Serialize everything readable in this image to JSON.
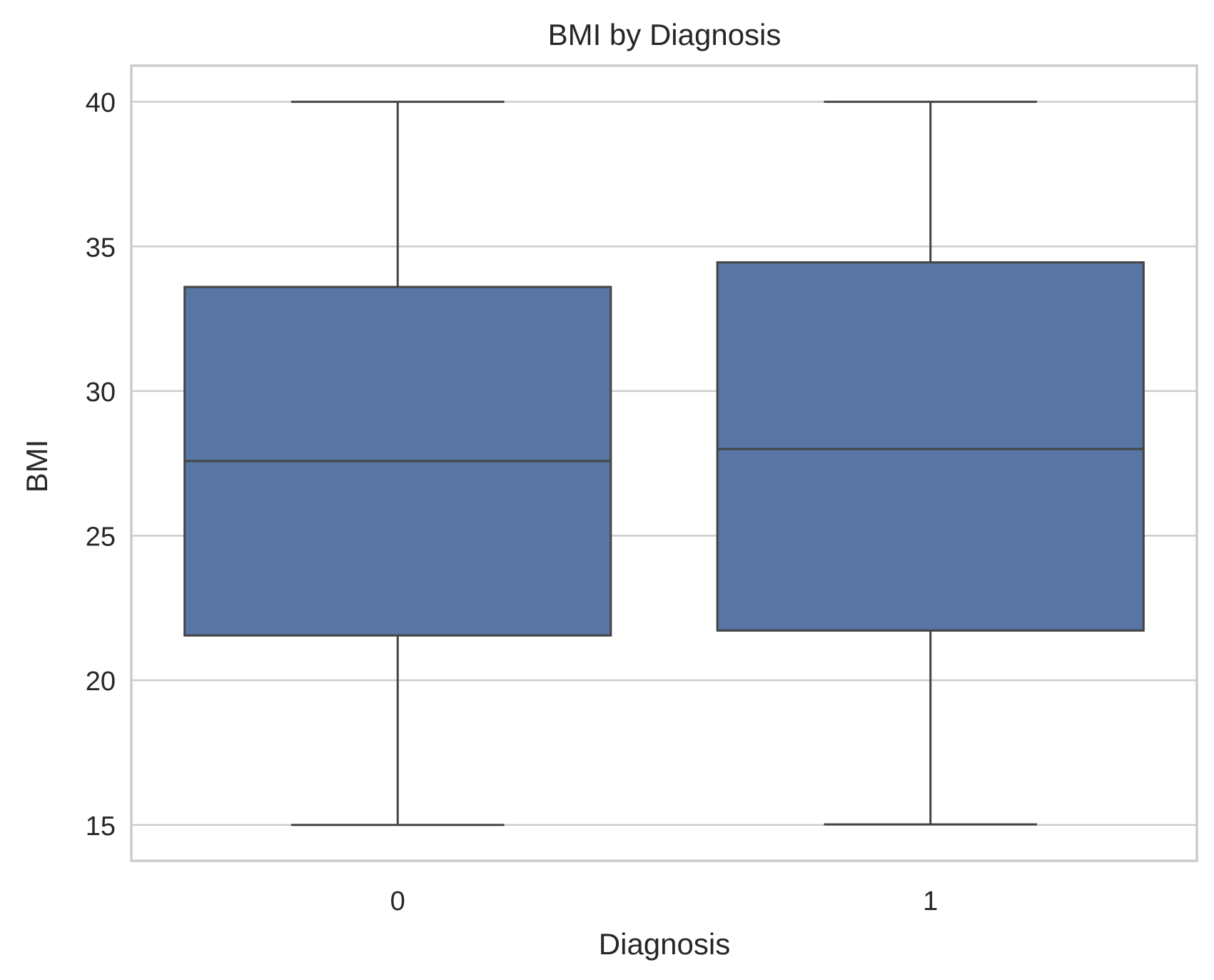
{
  "chart_data": {
    "type": "box",
    "title": "BMI by Diagnosis",
    "xlabel": "Diagnosis",
    "ylabel": "BMI",
    "ylim": [
      13.76,
      41.25
    ],
    "yticks": [
      15,
      20,
      25,
      30,
      35,
      40
    ],
    "ytick_labels": [
      "15",
      "20",
      "25",
      "30",
      "35",
      "40"
    ],
    "categories": [
      "0",
      "1"
    ],
    "boxes": [
      {
        "category": "0",
        "whisker_low": 15.0,
        "q1": 21.55,
        "median": 27.58,
        "q3": 33.6,
        "whisker_high": 40.0
      },
      {
        "category": "1",
        "whisker_low": 15.02,
        "q1": 21.72,
        "median": 28.0,
        "q3": 34.45,
        "whisker_high": 40.0
      }
    ],
    "grid": true,
    "colors": {
      "box_fill": "#5875a4",
      "line": "#444444",
      "grid": "#cccccc",
      "frame": "#cccccc",
      "text": "#262626"
    }
  }
}
